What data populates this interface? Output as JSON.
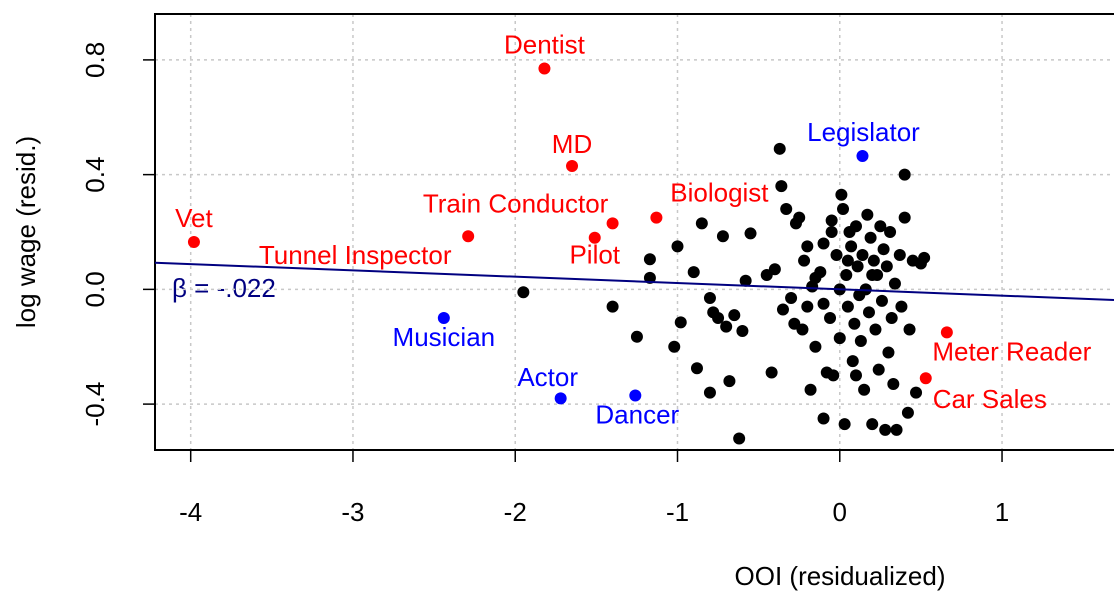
{
  "chart_data": {
    "type": "scatter",
    "xlabel": "OOI (residualized)",
    "ylabel": "log wage (resid.)",
    "xlim": [
      -4.22,
      1.69
    ],
    "ylim": [
      -0.56,
      0.96
    ],
    "xticks": [
      -4,
      -3,
      -2,
      -1,
      0,
      1
    ],
    "yticks": [
      -0.4,
      {
        "value": 0,
        "label": "0.0"
      },
      0.4,
      0.8
    ],
    "grid": true,
    "series": [
      {
        "color": "#000000",
        "x": [
          -1.95,
          -1.4,
          -1.25,
          -1.17,
          -1.17,
          -1.0,
          -1.02,
          -0.98,
          -0.9,
          -0.88,
          -0.85,
          -0.8,
          -0.8,
          -0.78,
          -0.75,
          -0.72,
          -0.7,
          -0.68,
          -0.65,
          -0.62,
          -0.6,
          -0.58,
          -0.55,
          -0.45,
          -0.42,
          -0.4,
          -0.37,
          -0.36,
          -0.33,
          -0.35,
          -0.3,
          -0.28,
          -0.27,
          -0.25,
          -0.23,
          -0.22,
          -0.2,
          -0.18,
          -0.17,
          -0.15,
          -0.12,
          -0.1,
          -0.1,
          -0.08,
          -0.06,
          -0.05,
          -0.04,
          -0.02,
          0.0,
          0.01,
          0.02,
          0.03,
          0.04,
          0.05,
          0.06,
          0.07,
          0.08,
          0.09,
          0.1,
          0.11,
          0.12,
          0.13,
          0.14,
          0.15,
          0.16,
          0.17,
          0.18,
          0.19,
          0.2,
          0.21,
          0.22,
          0.23,
          0.24,
          0.25,
          0.26,
          0.27,
          0.28,
          0.29,
          0.3,
          0.31,
          0.32,
          0.33,
          0.34,
          0.35,
          0.37,
          0.38,
          0.4,
          0.4,
          0.42,
          0.43,
          0.45,
          0.47,
          0.5,
          0.52,
          -0.05,
          -0.2,
          0.0,
          -0.15,
          0.1,
          0.2,
          -0.1,
          0.05
        ],
        "y": [
          -0.01,
          -0.06,
          -0.165,
          0.105,
          0.04,
          0.15,
          -0.2,
          -0.115,
          0.06,
          -0.275,
          0.23,
          -0.36,
          -0.03,
          -0.08,
          -0.1,
          0.185,
          -0.13,
          -0.32,
          -0.09,
          -0.52,
          -0.145,
          0.03,
          0.195,
          0.05,
          -0.29,
          0.07,
          0.49,
          0.36,
          0.28,
          -0.07,
          -0.03,
          -0.12,
          0.23,
          0.25,
          -0.14,
          0.1,
          -0.06,
          -0.35,
          0.01,
          -0.2,
          0.06,
          -0.45,
          0.16,
          -0.29,
          -0.1,
          0.24,
          -0.3,
          0.12,
          -0.17,
          0.33,
          0.28,
          -0.47,
          0.05,
          -0.06,
          0.2,
          0.15,
          -0.25,
          -0.12,
          0.22,
          0.08,
          -0.02,
          -0.18,
          0.12,
          -0.35,
          0.0,
          0.26,
          -0.08,
          0.18,
          -0.47,
          0.1,
          -0.14,
          0.05,
          -0.28,
          0.22,
          -0.04,
          0.14,
          -0.49,
          0.08,
          -0.22,
          0.2,
          -0.1,
          -0.33,
          0.02,
          -0.49,
          0.12,
          -0.06,
          0.4,
          0.25,
          -0.43,
          -0.14,
          0.1,
          -0.36,
          0.09,
          0.11,
          0.2,
          0.15,
          0.0,
          0.04,
          -0.3,
          0.05,
          -0.05,
          0.1
        ]
      }
    ],
    "labeled_points": [
      {
        "label": "Vet",
        "x": -3.98,
        "y": 0.165,
        "color": "#ff0000"
      },
      {
        "label": "Tunnel Inspector",
        "x": -2.29,
        "y": 0.185,
        "color": "#ff0000"
      },
      {
        "label": "Dentist",
        "x": -1.82,
        "y": 0.77,
        "color": "#ff0000"
      },
      {
        "label": "MD",
        "x": -1.65,
        "y": 0.43,
        "color": "#ff0000"
      },
      {
        "label": "Train Conductor",
        "x": -1.4,
        "y": 0.23,
        "color": "#ff0000"
      },
      {
        "label": "Pilot",
        "x": -1.51,
        "y": 0.18,
        "color": "#ff0000"
      },
      {
        "label": "Biologist",
        "x": -1.13,
        "y": 0.25,
        "color": "#ff0000"
      },
      {
        "label": "Meter Reader",
        "x": 0.66,
        "y": -0.15,
        "color": "#ff0000"
      },
      {
        "label": "Car Sales",
        "x": 0.53,
        "y": -0.31,
        "color": "#ff0000"
      },
      {
        "label": "Musician",
        "x": -2.44,
        "y": -0.1,
        "color": "#0000ff"
      },
      {
        "label": "Actor",
        "x": -1.72,
        "y": -0.38,
        "color": "#0000ff"
      },
      {
        "label": "Dancer",
        "x": -1.26,
        "y": -0.37,
        "color": "#0000ff"
      },
      {
        "label": "Legislator",
        "x": 0.14,
        "y": 0.465,
        "color": "#0000ff"
      }
    ],
    "fit_line": {
      "x": [
        -4.22,
        1.69
      ],
      "y": [
        0.093,
        -0.037
      ],
      "color": "#000080"
    },
    "annotation": "β = -.022"
  }
}
